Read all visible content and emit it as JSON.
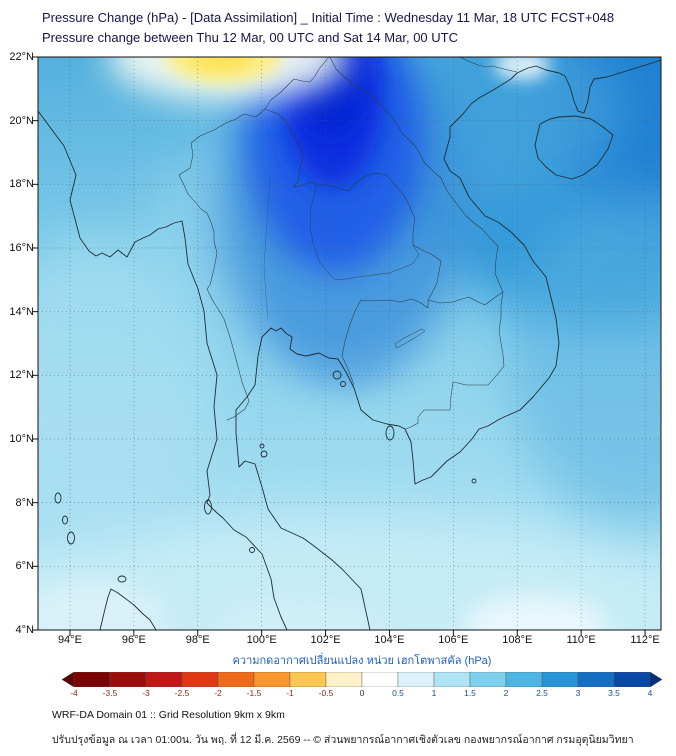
{
  "header": {
    "line1": "Pressure Change (hPa) - [Data Assimilation] _ Initial Time : Wednesday 11 Mar, 18 UTC FCST+048",
    "line2": "Pressure change between Thu 12 Mar, 00 UTC and Sat 14 Mar, 00 UTC"
  },
  "map": {
    "lat_ticks": [
      "22°N",
      "20°N",
      "18°N",
      "16°N",
      "14°N",
      "12°N",
      "10°N",
      "8°N",
      "6°N",
      "4°N"
    ],
    "lon_ticks": [
      "94°E",
      "96°E",
      "98°E",
      "100°E",
      "102°E",
      "104°E",
      "106°E",
      "108°E",
      "110°E",
      "112°E"
    ]
  },
  "colorbar": {
    "title": "ความกดอากาศเปลี่ยนแปลง หน่วย เฮกโตพาสคัล (hPa)",
    "ticks": [
      "-4",
      "-3.5",
      "-3",
      "-2.5",
      "-2",
      "-1.5",
      "-1",
      "-0.5",
      "0",
      "0.5",
      "1",
      "1.5",
      "2",
      "2.5",
      "3",
      "3.5",
      "4"
    ],
    "segment_colors": [
      "#7a0403",
      "#9e0d0d",
      "#c21717",
      "#df3815",
      "#ef6a1a",
      "#f9962e",
      "#fcc653",
      "#fff2c8",
      "#ffffff",
      "#ddf2fa",
      "#b0e3f3",
      "#7fd0ec",
      "#4db5e1",
      "#2893d5",
      "#156fc3",
      "#0a48a6"
    ],
    "left_arrow_color": "#5c0202",
    "right_arrow_color": "#072d7e",
    "negative_label_color": "#a6241c",
    "positive_label_color": "#14509c",
    "zero_label_color": "#333333"
  },
  "footer": {
    "line1": "WRF-DA Domain 01 :: Grid Resolution 9km x 9km",
    "line2": "ปรับปรุงข้อมูล ณ เวลา 01:00น. วัน พฤ. ที่ 12 มี.ค. 2569 -- © ส่วนพยากรณ์อากาศเชิงตัวเลข กองพยากรณ์อากาศ กรมอุตุนิยมวิทยา"
  }
}
